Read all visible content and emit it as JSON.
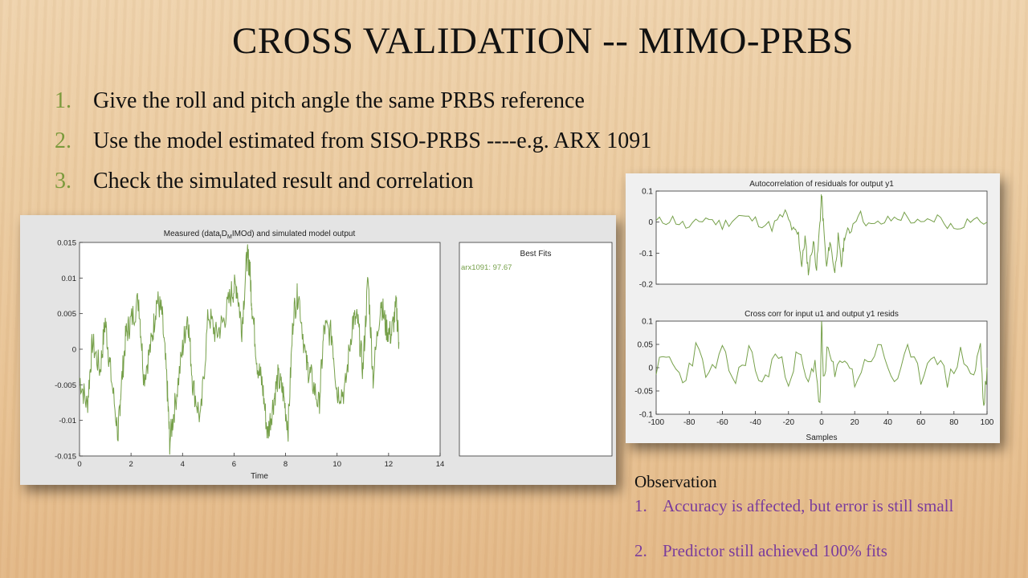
{
  "slide": {
    "title": "CROSS VALIDATION -- MIMO-PRBS",
    "bullets": [
      {
        "num": "1.",
        "text": "Give the roll and pitch angle the same PRBS reference"
      },
      {
        "num": "2.",
        "text": "Use the model estimated from SISO-PRBS ----e.g. ARX 1091"
      },
      {
        "num": "3.",
        "text": "Check the simulated result and correlation"
      }
    ],
    "observation": {
      "heading": "Observation",
      "items": [
        {
          "num": "1.",
          "text": "Accuracy is affected, but error is still small"
        },
        {
          "num": "2.",
          "text": "Predictor still achieved 100% fits"
        }
      ]
    }
  },
  "colors": {
    "line": "#76a04a",
    "bullet_number": "#7b9a3c",
    "observation_text": "#7a3c9c"
  },
  "chart_data": [
    {
      "type": "line",
      "title_parts": [
        "Measured (data",
        "I",
        "D",
        "M",
        "IMOd) and simulated model output"
      ],
      "xlabel": "Time",
      "ylabel": "",
      "xlim": [
        0,
        14
      ],
      "ylim": [
        -0.015,
        0.015
      ],
      "xticks": [
        0,
        2,
        4,
        6,
        8,
        10,
        12,
        14
      ],
      "xtick_labels": [
        "0",
        "2",
        "4",
        "6",
        "8",
        "10",
        "12",
        "14"
      ],
      "yticks": [
        -0.015,
        -0.01,
        -0.005,
        0,
        0.005,
        0.01,
        0.015
      ],
      "ytick_labels": [
        "-0.015",
        "-0.01",
        "-0.005",
        "0",
        "0.005",
        "0.01",
        "0.015"
      ],
      "series": [
        {
          "name": "arx1091: 97.67",
          "x": [
            0,
            0.3,
            0.5,
            0.8,
            1.0,
            1.2,
            1.5,
            1.6,
            1.8,
            2.0,
            2.3,
            2.5,
            2.8,
            3.0,
            3.2,
            3.4,
            3.5,
            3.7,
            4.0,
            4.2,
            4.4,
            4.7,
            5.0,
            5.3,
            5.6,
            5.9,
            6.1,
            6.3,
            6.5,
            6.6,
            6.7,
            6.9,
            7.1,
            7.3,
            7.5,
            7.7,
            7.9,
            8.1,
            8.3,
            8.5,
            8.8,
            9.0,
            9.3,
            9.5,
            9.8,
            10.0,
            10.3,
            10.6,
            10.8,
            11.0,
            11.2,
            11.4,
            11.7,
            11.9,
            12.1,
            12.3,
            12.4
          ],
          "y": [
            -0.004,
            -0.008,
            0.001,
            -0.003,
            0.004,
            -0.003,
            -0.012,
            -0.006,
            0.002,
            0.004,
            0.007,
            -0.004,
            0.001,
            0.007,
            0.005,
            -0.005,
            -0.013,
            -0.008,
            0.0,
            0.005,
            -0.005,
            -0.01,
            0.005,
            0.002,
            0.004,
            0.008,
            0.009,
            0.003,
            0.013,
            0.012,
            0.006,
            -0.002,
            -0.005,
            -0.012,
            -0.008,
            -0.004,
            -0.006,
            -0.011,
            0.005,
            0.008,
            -0.002,
            -0.004,
            -0.008,
            0.003,
            0.002,
            -0.006,
            -0.006,
            0.004,
            0.004,
            -0.003,
            0.01,
            -0.004,
            0.007,
            0.003,
            0.002,
            0.006,
            0.001
          ]
        }
      ]
    },
    {
      "type": "line",
      "title": "Autocorrelation of residuals for output y1",
      "xlim": [
        -100,
        100
      ],
      "ylim": [
        -0.2,
        0.1
      ],
      "yticks": [
        0.1,
        0,
        -0.1,
        -0.2
      ],
      "ytick_labels": [
        "0.1",
        "0",
        "-0.1",
        "-0.2"
      ],
      "series": [
        {
          "x": [
            -100,
            -90,
            -80,
            -70,
            -60,
            -50,
            -40,
            -30,
            -22,
            -17,
            -14,
            -12,
            -10,
            -8,
            -5,
            -3,
            -1,
            0,
            1,
            3,
            5,
            8,
            10,
            12,
            14,
            17,
            22,
            30,
            40,
            50,
            60,
            70,
            80,
            90,
            100
          ],
          "y": [
            0.0,
            0.01,
            -0.02,
            0.015,
            -0.01,
            0.02,
            0.005,
            -0.015,
            0.03,
            -0.03,
            -0.04,
            -0.14,
            -0.05,
            -0.16,
            -0.06,
            -0.15,
            0.0,
            0.09,
            0.0,
            -0.15,
            -0.06,
            -0.16,
            -0.05,
            -0.14,
            -0.04,
            -0.03,
            0.03,
            -0.015,
            0.005,
            0.02,
            -0.01,
            0.015,
            -0.02,
            0.01,
            0.0
          ]
        }
      ]
    },
    {
      "type": "line",
      "title": "Cross corr for input u1 and output y1 resids",
      "xlabel": "Samples",
      "xlim": [
        -100,
        100
      ],
      "ylim": [
        -0.1,
        0.1
      ],
      "xticks": [
        -100,
        -80,
        -60,
        -40,
        -20,
        0,
        20,
        40,
        60,
        80,
        100
      ],
      "xtick_labels": [
        "-100",
        "-80",
        "-60",
        "-40",
        "-20",
        "0",
        "20",
        "40",
        "60",
        "80",
        "100"
      ],
      "yticks": [
        0.1,
        0.05,
        0,
        -0.05,
        -0.1
      ],
      "ytick_labels": [
        "0.1",
        "0.05",
        "0",
        "-0.05",
        "-0.1"
      ],
      "series": [
        {
          "x": [
            -100,
            -92,
            -84,
            -76,
            -68,
            -60,
            -52,
            -44,
            -36,
            -28,
            -20,
            -14,
            -8,
            -4,
            -1,
            0,
            1,
            4,
            8,
            14,
            20,
            28,
            36,
            44,
            52,
            60,
            68,
            76,
            84,
            92,
            96,
            98,
            100
          ],
          "y": [
            0.0,
            0.02,
            -0.03,
            0.04,
            -0.02,
            0.03,
            -0.03,
            0.04,
            -0.04,
            0.03,
            -0.02,
            0.03,
            -0.04,
            0.02,
            -0.09,
            0.1,
            -0.02,
            0.04,
            -0.02,
            0.03,
            -0.03,
            0.02,
            0.04,
            -0.03,
            0.03,
            -0.02,
            0.04,
            -0.03,
            0.03,
            -0.02,
            0.05,
            -0.09,
            0.0
          ]
        }
      ]
    }
  ],
  "legend": {
    "title": "Best Fits",
    "entries": [
      "arx1091: 97.67"
    ]
  }
}
